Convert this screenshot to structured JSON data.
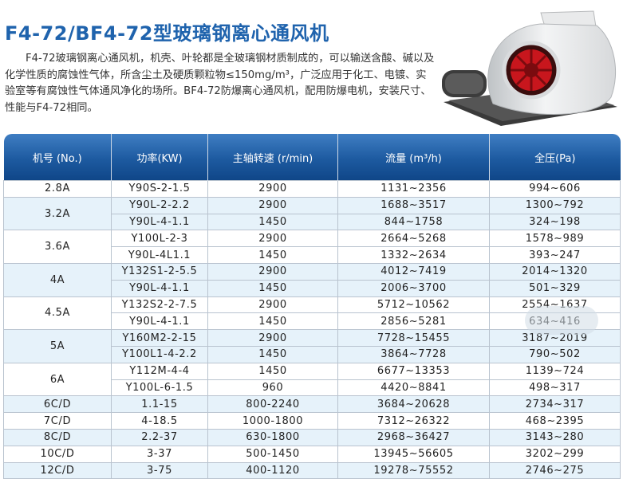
{
  "title": "F4-72/BF4-72型玻璃钢离心通风机",
  "description": "F4-72玻璃钢离心通风机，机壳、叶轮都是全玻璃钢材质制成的，可以输送含酸、碱以及化学性质的腐蚀性气体，所含尘土及硬质颗粒物≤150mg/m³，广泛应用于化工、电镀、实验室等有腐蚀性气体通风净化的场所。BF4-72防爆离心通风机，配用防爆电机，安装尺寸、性能与F4-72相同。",
  "colors": {
    "title": "#1f63ad",
    "header": "#1d5aa0",
    "row_alt": "#e6f2fa"
  },
  "table": {
    "headers": [
      "机号 (No.)",
      "功率(KW)",
      "主轴转速 (r/min)",
      "流量 (m³/h)",
      "全压(Pa)"
    ],
    "groups": [
      {
        "no": "2.8A",
        "rows": [
          [
            "Y90S-2-1.5",
            "2900",
            "1131~2356",
            "994~606"
          ]
        ]
      },
      {
        "no": "3.2A",
        "rows": [
          [
            "Y90L-2-2.2",
            "2900",
            "1688~3517",
            "1300~792"
          ],
          [
            "Y90L-4-1.1",
            "1450",
            "844~1758",
            "324~198"
          ]
        ]
      },
      {
        "no": "3.6A",
        "rows": [
          [
            "Y100L-2-3",
            "2900",
            "2664~5268",
            "1578~989"
          ],
          [
            "Y90L-4L1.1",
            "1450",
            "1332~2634",
            "393~247"
          ]
        ]
      },
      {
        "no": "4A",
        "rows": [
          [
            "Y132S1-2-5.5",
            "2900",
            "4012~7419",
            "2014~1320"
          ],
          [
            "Y90L-4-1.1",
            "1450",
            "2006~3700",
            "501~329"
          ]
        ]
      },
      {
        "no": "4.5A",
        "rows": [
          [
            "Y132S2-2-7.5",
            "2900",
            "5712~10562",
            "2554~1637"
          ],
          [
            "Y90L-4-1.1",
            "1450",
            "2856~5281",
            "634~416"
          ]
        ]
      },
      {
        "no": "5A",
        "rows": [
          [
            "Y160M2-2-15",
            "2900",
            "7728~15455",
            "3187~2019"
          ],
          [
            "Y100L1-4-2.2",
            "1450",
            "3864~7728",
            "790~502"
          ]
        ]
      },
      {
        "no": "6A",
        "rows": [
          [
            "Y112M-4-4",
            "1450",
            "6677~13353",
            "1139~724"
          ],
          [
            "Y100L-6-1.5",
            "960",
            "4420~8841",
            "498~317"
          ]
        ]
      },
      {
        "no": "6C/D",
        "rows": [
          [
            "1.1-15",
            "800-2240",
            "3684~20628",
            "2734~317"
          ]
        ]
      },
      {
        "no": "7C/D",
        "rows": [
          [
            "4-18.5",
            "1000-1800",
            "7312~26322",
            "468~2395"
          ]
        ]
      },
      {
        "no": "8C/D",
        "rows": [
          [
            "2.2-37",
            "630-1800",
            "2968~36427",
            "3143~280"
          ]
        ]
      },
      {
        "no": "10C/D",
        "rows": [
          [
            "3-37",
            "500-1450",
            "13945~56605",
            "3202~299"
          ]
        ]
      },
      {
        "no": "12C/D",
        "rows": [
          [
            "3-75",
            "400-1120",
            "19278~75552",
            "2746~275"
          ]
        ]
      }
    ]
  }
}
